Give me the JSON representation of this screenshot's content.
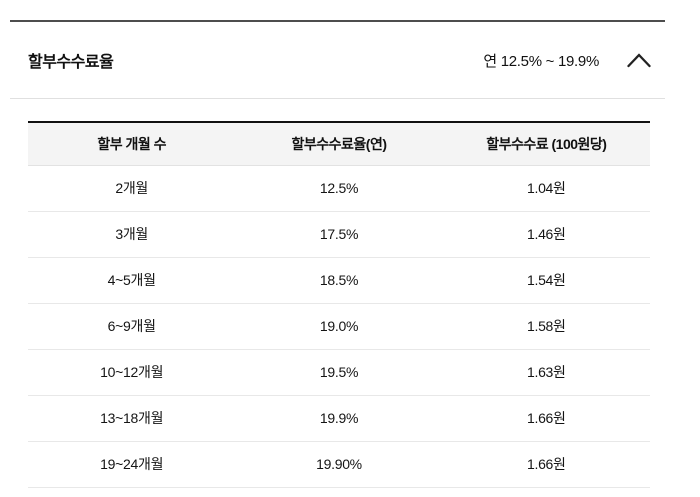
{
  "accordion": {
    "title": "할부수수료율",
    "summary": "연 12.5% ~ 19.9%",
    "chevron_icon": "chevron-up"
  },
  "table": {
    "headers": [
      "할부 개월 수",
      "할부수수료율(연)",
      "할부수수료 (100원당)"
    ],
    "rows": [
      [
        "2개월",
        "12.5%",
        "1.04원"
      ],
      [
        "3개월",
        "17.5%",
        "1.46원"
      ],
      [
        "4~5개월",
        "18.5%",
        "1.54원"
      ],
      [
        "6~9개월",
        "19.0%",
        "1.58원"
      ],
      [
        "10~12개월",
        "19.5%",
        "1.63원"
      ],
      [
        "13~18개월",
        "19.9%",
        "1.66원"
      ],
      [
        "19~24개월",
        "19.90%",
        "1.66원"
      ]
    ]
  },
  "colors": {
    "text": "#111111",
    "header_bg": "#f4f4f4",
    "table_top_rule": "#111111",
    "panel_top_rule": "#4d4d4d",
    "divider": "#e0e0e0",
    "row_divider": "#e8e8e8"
  }
}
